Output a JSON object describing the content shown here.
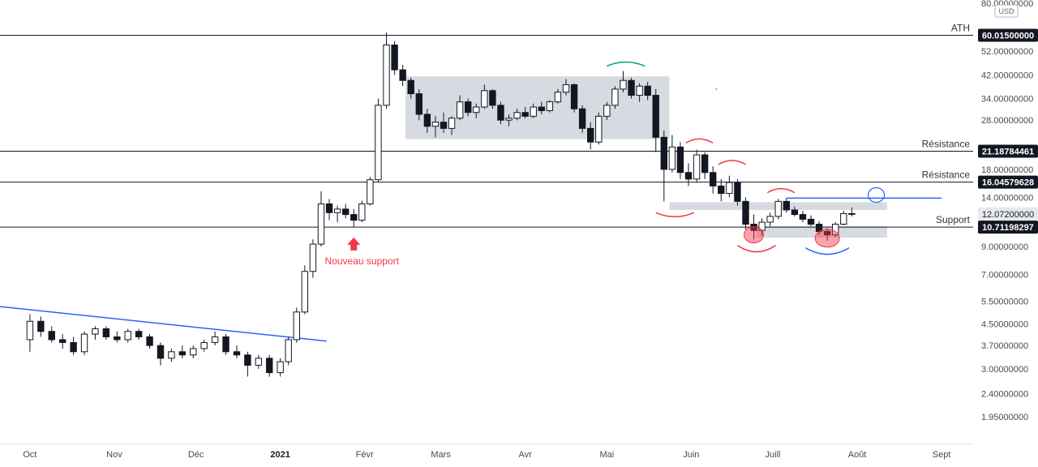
{
  "chart_data": {
    "type": "candlestick",
    "currency": "USD",
    "y_scale": "log",
    "ylim": [
      1.7,
      80
    ],
    "y_ticks": [
      {
        "value": 80,
        "label": "80.00000000"
      },
      {
        "value": 52,
        "label": "52.00000000"
      },
      {
        "value": 42,
        "label": "42.00000000"
      },
      {
        "value": 34,
        "label": "34.00000000"
      },
      {
        "value": 28,
        "label": "28.00000000"
      },
      {
        "value": 18,
        "label": "18.00000000"
      },
      {
        "value": 14,
        "label": "14.00000000"
      },
      {
        "value": 9,
        "label": "9.00000000"
      },
      {
        "value": 7,
        "label": "7.00000000"
      },
      {
        "value": 5.5,
        "label": "5.50000000"
      },
      {
        "value": 4.5,
        "label": "4.50000000"
      },
      {
        "value": 3.7,
        "label": "3.70000000"
      },
      {
        "value": 3,
        "label": "3.00000000"
      },
      {
        "value": 2.4,
        "label": "2.40000000"
      },
      {
        "value": 1.95,
        "label": "1.95000000"
      }
    ],
    "x_range": [
      "2020-09-20",
      "2021-09-12"
    ],
    "x_ticks": [
      {
        "date": "2020-10-01",
        "label": "Oct",
        "bold": false
      },
      {
        "date": "2020-11-01",
        "label": "Nov",
        "bold": false
      },
      {
        "date": "2020-12-01",
        "label": "Déc",
        "bold": false
      },
      {
        "date": "2021-01-01",
        "label": "2021",
        "bold": true
      },
      {
        "date": "2021-02-01",
        "label": "Févr",
        "bold": false
      },
      {
        "date": "2021-03-01",
        "label": "Mars",
        "bold": false
      },
      {
        "date": "2021-04-01",
        "label": "Avr",
        "bold": false
      },
      {
        "date": "2021-05-01",
        "label": "Mai",
        "bold": false
      },
      {
        "date": "2021-06-01",
        "label": "Juin",
        "bold": false
      },
      {
        "date": "2021-07-01",
        "label": "Juill",
        "bold": false
      },
      {
        "date": "2021-08-01",
        "label": "Août",
        "bold": false
      },
      {
        "date": "2021-09-01",
        "label": "Sept",
        "bold": false
      }
    ],
    "horizontal_levels": [
      {
        "label": "ATH",
        "value": 60.015,
        "value_label": "60.01500000"
      },
      {
        "label": "Résistance",
        "value": 21.18784461,
        "value_label": "21.18784461"
      },
      {
        "label": "Résistance",
        "value": 16.04579628,
        "value_label": "16.04579628"
      },
      {
        "label": "Support",
        "value": 10.71198297,
        "value_label": "10.71198297"
      }
    ],
    "last_price": {
      "value": 12.072,
      "label": "12.07200000"
    },
    "annotations": [
      {
        "kind": "text",
        "text": "Nouveau support",
        "date": "2021-01-28",
        "value": 8.2
      }
    ],
    "shaded_zones": [
      {
        "start": "2021-02-16",
        "end": "2021-05-24",
        "low": 23.6,
        "high": 41.5
      },
      {
        "start": "2021-05-24",
        "end": "2021-08-12",
        "low": 12.5,
        "high": 13.4
      },
      {
        "start": "2021-06-25",
        "end": "2021-08-12",
        "low": 9.75,
        "high": 10.8
      }
    ],
    "trendlines": [
      {
        "color": "#2962ff",
        "from": {
          "date": "2020-09-20",
          "value": 5.25
        },
        "to": {
          "date": "2021-01-18",
          "value": 3.85
        }
      },
      {
        "color": "#2962ff",
        "from": {
          "date": "2021-07-06",
          "value": 13.9
        },
        "to": {
          "date": "2021-09-01",
          "value": 13.9
        }
      }
    ],
    "candles": [
      {
        "date": "2020-10-01",
        "open": 3.9,
        "high": 4.9,
        "low": 3.5,
        "close": 4.6
      },
      {
        "date": "2020-10-05",
        "open": 4.6,
        "high": 4.8,
        "low": 4.0,
        "close": 4.2
      },
      {
        "date": "2020-10-09",
        "open": 4.2,
        "high": 4.4,
        "low": 3.8,
        "close": 3.9
      },
      {
        "date": "2020-10-13",
        "open": 3.9,
        "high": 4.1,
        "low": 3.6,
        "close": 3.8
      },
      {
        "date": "2020-10-17",
        "open": 3.8,
        "high": 4.0,
        "low": 3.4,
        "close": 3.5
      },
      {
        "date": "2020-10-21",
        "open": 3.5,
        "high": 4.2,
        "low": 3.4,
        "close": 4.1
      },
      {
        "date": "2020-10-25",
        "open": 4.1,
        "high": 4.4,
        "low": 3.9,
        "close": 4.3
      },
      {
        "date": "2020-10-29",
        "open": 4.3,
        "high": 4.4,
        "low": 3.9,
        "close": 4.0
      },
      {
        "date": "2020-11-02",
        "open": 4.0,
        "high": 4.2,
        "low": 3.8,
        "close": 3.9
      },
      {
        "date": "2020-11-06",
        "open": 3.9,
        "high": 4.3,
        "low": 3.8,
        "close": 4.2
      },
      {
        "date": "2020-11-10",
        "open": 4.2,
        "high": 4.3,
        "low": 3.9,
        "close": 4.0
      },
      {
        "date": "2020-11-14",
        "open": 4.0,
        "high": 4.1,
        "low": 3.6,
        "close": 3.7
      },
      {
        "date": "2020-11-18",
        "open": 3.7,
        "high": 3.8,
        "low": 3.1,
        "close": 3.3
      },
      {
        "date": "2020-11-22",
        "open": 3.3,
        "high": 3.6,
        "low": 3.2,
        "close": 3.5
      },
      {
        "date": "2020-11-26",
        "open": 3.5,
        "high": 3.7,
        "low": 3.3,
        "close": 3.4
      },
      {
        "date": "2020-11-30",
        "open": 3.4,
        "high": 3.7,
        "low": 3.3,
        "close": 3.6
      },
      {
        "date": "2020-12-04",
        "open": 3.6,
        "high": 3.9,
        "low": 3.5,
        "close": 3.8
      },
      {
        "date": "2020-12-08",
        "open": 3.8,
        "high": 4.2,
        "low": 3.7,
        "close": 4.0
      },
      {
        "date": "2020-12-12",
        "open": 4.0,
        "high": 4.1,
        "low": 3.4,
        "close": 3.5
      },
      {
        "date": "2020-12-16",
        "open": 3.5,
        "high": 3.7,
        "low": 3.3,
        "close": 3.4
      },
      {
        "date": "2020-12-20",
        "open": 3.4,
        "high": 3.5,
        "low": 2.8,
        "close": 3.1
      },
      {
        "date": "2020-12-24",
        "open": 3.1,
        "high": 3.4,
        "low": 3.0,
        "close": 3.3
      },
      {
        "date": "2020-12-28",
        "open": 3.3,
        "high": 3.4,
        "low": 2.8,
        "close": 2.9
      },
      {
        "date": "2021-01-01",
        "open": 2.9,
        "high": 3.3,
        "low": 2.8,
        "close": 3.2
      },
      {
        "date": "2021-01-04",
        "open": 3.2,
        "high": 4.0,
        "low": 3.1,
        "close": 3.9
      },
      {
        "date": "2021-01-07",
        "open": 3.9,
        "high": 5.2,
        "low": 3.8,
        "close": 5.0
      },
      {
        "date": "2021-01-10",
        "open": 5.0,
        "high": 7.6,
        "low": 4.9,
        "close": 7.2
      },
      {
        "date": "2021-01-13",
        "open": 7.2,
        "high": 9.6,
        "low": 6.8,
        "close": 9.2
      },
      {
        "date": "2021-01-16",
        "open": 9.2,
        "high": 14.8,
        "low": 9.0,
        "close": 13.2
      },
      {
        "date": "2021-01-19",
        "open": 13.2,
        "high": 13.8,
        "low": 11.4,
        "close": 12.2
      },
      {
        "date": "2021-01-22",
        "open": 12.2,
        "high": 13.0,
        "low": 11.2,
        "close": 12.6
      },
      {
        "date": "2021-01-25",
        "open": 12.6,
        "high": 13.2,
        "low": 11.6,
        "close": 12.0
      },
      {
        "date": "2021-01-28",
        "open": 12.0,
        "high": 12.6,
        "low": 10.7,
        "close": 11.4
      },
      {
        "date": "2021-01-31",
        "open": 11.4,
        "high": 13.6,
        "low": 11.2,
        "close": 13.2
      },
      {
        "date": "2021-02-03",
        "open": 13.2,
        "high": 16.8,
        "low": 13.0,
        "close": 16.4
      },
      {
        "date": "2021-02-06",
        "open": 16.4,
        "high": 34.0,
        "low": 16.0,
        "close": 32.0
      },
      {
        "date": "2021-02-09",
        "open": 32.0,
        "high": 61.5,
        "low": 31.0,
        "close": 55.0
      },
      {
        "date": "2021-02-12",
        "open": 55.0,
        "high": 57.0,
        "low": 42.0,
        "close": 44.0
      },
      {
        "date": "2021-02-15",
        "open": 44.0,
        "high": 46.0,
        "low": 38.0,
        "close": 40.0
      },
      {
        "date": "2021-02-18",
        "open": 40.0,
        "high": 41.0,
        "low": 34.0,
        "close": 35.5
      },
      {
        "date": "2021-02-21",
        "open": 35.5,
        "high": 37.0,
        "low": 28.0,
        "close": 29.5
      },
      {
        "date": "2021-02-24",
        "open": 29.5,
        "high": 31.0,
        "low": 25.0,
        "close": 26.5
      },
      {
        "date": "2021-02-27",
        "open": 26.5,
        "high": 29.0,
        "low": 24.0,
        "close": 27.5
      },
      {
        "date": "2021-03-02",
        "open": 27.5,
        "high": 30.0,
        "low": 25.0,
        "close": 26.0
      },
      {
        "date": "2021-03-05",
        "open": 26.0,
        "high": 29.0,
        "low": 24.5,
        "close": 28.5
      },
      {
        "date": "2021-03-08",
        "open": 28.5,
        "high": 35.0,
        "low": 28.0,
        "close": 33.0
      },
      {
        "date": "2021-03-11",
        "open": 33.0,
        "high": 34.0,
        "low": 29.0,
        "close": 30.0
      },
      {
        "date": "2021-03-14",
        "open": 30.0,
        "high": 32.5,
        "low": 28.5,
        "close": 31.5
      },
      {
        "date": "2021-03-17",
        "open": 31.5,
        "high": 38.5,
        "low": 31.0,
        "close": 36.5
      },
      {
        "date": "2021-03-20",
        "open": 36.5,
        "high": 37.0,
        "low": 31.0,
        "close": 32.0
      },
      {
        "date": "2021-03-23",
        "open": 32.0,
        "high": 33.0,
        "low": 27.0,
        "close": 28.0
      },
      {
        "date": "2021-03-26",
        "open": 28.0,
        "high": 29.5,
        "low": 26.5,
        "close": 28.5
      },
      {
        "date": "2021-03-29",
        "open": 28.5,
        "high": 31.0,
        "low": 28.0,
        "close": 30.0
      },
      {
        "date": "2021-04-01",
        "open": 30.0,
        "high": 31.5,
        "low": 28.5,
        "close": 29.0
      },
      {
        "date": "2021-04-04",
        "open": 29.0,
        "high": 32.5,
        "low": 28.5,
        "close": 31.5
      },
      {
        "date": "2021-04-07",
        "open": 31.5,
        "high": 33.0,
        "low": 29.5,
        "close": 30.5
      },
      {
        "date": "2021-04-10",
        "open": 30.5,
        "high": 33.5,
        "low": 30.0,
        "close": 33.0
      },
      {
        "date": "2021-04-13",
        "open": 33.0,
        "high": 37.0,
        "low": 32.5,
        "close": 36.0
      },
      {
        "date": "2021-04-16",
        "open": 36.0,
        "high": 40.5,
        "low": 35.0,
        "close": 38.5
      },
      {
        "date": "2021-04-19",
        "open": 38.5,
        "high": 39.0,
        "low": 30.0,
        "close": 31.0
      },
      {
        "date": "2021-04-22",
        "open": 31.0,
        "high": 32.0,
        "low": 25.0,
        "close": 26.0
      },
      {
        "date": "2021-04-25",
        "open": 26.0,
        "high": 27.5,
        "low": 21.5,
        "close": 23.0
      },
      {
        "date": "2021-04-28",
        "open": 23.0,
        "high": 30.0,
        "low": 22.5,
        "close": 29.0
      },
      {
        "date": "2021-05-01",
        "open": 29.0,
        "high": 33.0,
        "low": 28.0,
        "close": 32.0
      },
      {
        "date": "2021-05-04",
        "open": 32.0,
        "high": 38.0,
        "low": 31.0,
        "close": 37.0
      },
      {
        "date": "2021-05-07",
        "open": 37.0,
        "high": 43.5,
        "low": 36.0,
        "close": 40.0
      },
      {
        "date": "2021-05-10",
        "open": 40.0,
        "high": 41.0,
        "low": 34.0,
        "close": 35.0
      },
      {
        "date": "2021-05-13",
        "open": 35.0,
        "high": 39.0,
        "low": 33.0,
        "close": 38.0
      },
      {
        "date": "2021-05-16",
        "open": 38.0,
        "high": 39.5,
        "low": 33.5,
        "close": 35.0
      },
      {
        "date": "2021-05-19",
        "open": 35.0,
        "high": 37.0,
        "low": 21.0,
        "close": 24.0
      },
      {
        "date": "2021-05-22",
        "open": 24.0,
        "high": 25.5,
        "low": 13.5,
        "close": 18.0
      },
      {
        "date": "2021-05-25",
        "open": 18.0,
        "high": 24.5,
        "low": 17.5,
        "close": 22.0
      },
      {
        "date": "2021-05-28",
        "open": 22.0,
        "high": 23.0,
        "low": 16.5,
        "close": 17.5
      },
      {
        "date": "2021-05-31",
        "open": 17.5,
        "high": 19.0,
        "low": 15.5,
        "close": 16.5
      },
      {
        "date": "2021-06-03",
        "open": 16.5,
        "high": 21.5,
        "low": 16.0,
        "close": 20.5
      },
      {
        "date": "2021-06-06",
        "open": 20.5,
        "high": 21.0,
        "low": 16.5,
        "close": 17.5
      },
      {
        "date": "2021-06-09",
        "open": 17.5,
        "high": 18.5,
        "low": 14.5,
        "close": 15.5
      },
      {
        "date": "2021-06-12",
        "open": 15.5,
        "high": 16.5,
        "low": 13.5,
        "close": 14.5
      },
      {
        "date": "2021-06-15",
        "open": 14.5,
        "high": 17.0,
        "low": 14.0,
        "close": 16.0
      },
      {
        "date": "2021-06-18",
        "open": 16.0,
        "high": 16.5,
        "low": 13.0,
        "close": 13.5
      },
      {
        "date": "2021-06-21",
        "open": 13.5,
        "high": 14.0,
        "low": 10.5,
        "close": 11.0
      },
      {
        "date": "2021-06-24",
        "open": 11.0,
        "high": 12.0,
        "low": 9.6,
        "close": 10.4
      },
      {
        "date": "2021-06-27",
        "open": 10.4,
        "high": 11.6,
        "low": 9.9,
        "close": 11.2
      },
      {
        "date": "2021-06-30",
        "open": 11.2,
        "high": 12.2,
        "low": 10.8,
        "close": 11.8
      },
      {
        "date": "2021-07-03",
        "open": 11.8,
        "high": 13.8,
        "low": 11.5,
        "close": 13.5
      },
      {
        "date": "2021-07-06",
        "open": 13.5,
        "high": 13.9,
        "low": 12.2,
        "close": 12.5
      },
      {
        "date": "2021-07-09",
        "open": 12.5,
        "high": 12.9,
        "low": 11.8,
        "close": 12.0
      },
      {
        "date": "2021-07-12",
        "open": 12.0,
        "high": 12.4,
        "low": 11.2,
        "close": 11.5
      },
      {
        "date": "2021-07-15",
        "open": 11.5,
        "high": 11.9,
        "low": 10.8,
        "close": 11.0
      },
      {
        "date": "2021-07-18",
        "open": 11.0,
        "high": 11.3,
        "low": 10.0,
        "close": 10.3
      },
      {
        "date": "2021-07-21",
        "open": 10.3,
        "high": 10.6,
        "low": 9.5,
        "close": 10.0
      },
      {
        "date": "2021-07-24",
        "open": 10.0,
        "high": 11.2,
        "low": 9.8,
        "close": 11.0
      },
      {
        "date": "2021-07-27",
        "open": 11.0,
        "high": 12.4,
        "low": 10.9,
        "close": 12.1
      },
      {
        "date": "2021-07-30",
        "open": 12.1,
        "high": 12.8,
        "low": 11.8,
        "close": 12.07
      }
    ]
  },
  "colors": {
    "candle": "#131722",
    "level_line": "#131722",
    "trendline": "#2962ff",
    "zone_fill": "#d1d4dc",
    "marker_red": "#f23645",
    "marker_green": "#089981",
    "marker_blue": "#2962ff",
    "tag_dark": "#131722",
    "tag_light": "#e6e8ec"
  }
}
